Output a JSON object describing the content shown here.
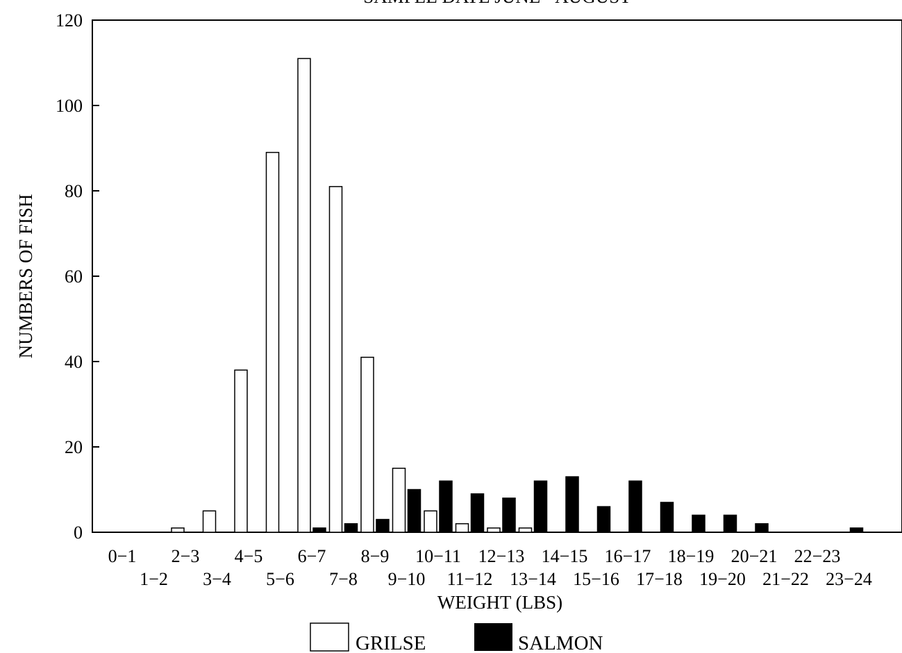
{
  "chart_data": {
    "type": "bar",
    "title": "SAMPLE DATE JUNE - AUGUST",
    "xlabel": "WEIGHT (LBS)",
    "ylabel": "NUMBERS OF FISH",
    "ylim": [
      0,
      120
    ],
    "yticks": [
      0,
      20,
      40,
      60,
      80,
      100,
      120
    ],
    "grid": false,
    "legend_position": "bottom",
    "categories": [
      "0-1",
      "1-2",
      "2-3",
      "3-4",
      "4-5",
      "5-6",
      "6-7",
      "7-8",
      "8-9",
      "9-10",
      "10-11",
      "11-12",
      "12-13",
      "13-14",
      "14-15",
      "15-16",
      "16-17",
      "17-18",
      "18-19",
      "19-20",
      "20-21",
      "21-22",
      "22-23",
      "23-24"
    ],
    "tick_labels_top": [
      "0−1",
      "2−3",
      "4−5",
      "6−7",
      "8−9",
      "10−11",
      "12−13",
      "14−15",
      "16−17",
      "18−19",
      "20−21",
      "22−23"
    ],
    "tick_labels_bottom": [
      "1−2",
      "3−4",
      "5−6",
      "7−8",
      "9−10",
      "11−12",
      "13−14",
      "15−16",
      "17−18",
      "19−20",
      "21−22",
      "23−24"
    ],
    "series": [
      {
        "name": "GRILSE",
        "color": "#ffffff",
        "values": [
          0,
          0,
          1,
          5,
          38,
          89,
          111,
          81,
          41,
          15,
          5,
          2,
          1,
          1,
          0,
          0,
          0,
          0,
          0,
          0,
          0,
          0,
          0,
          0
        ]
      },
      {
        "name": "SALMON",
        "color": "#000000",
        "values": [
          0,
          0,
          0,
          0,
          0,
          0,
          1,
          2,
          3,
          10,
          12,
          9,
          8,
          12,
          13,
          6,
          12,
          7,
          4,
          4,
          2,
          0,
          0,
          1
        ]
      }
    ]
  },
  "legend": {
    "grilse_label": "GRILSE",
    "salmon_label": "SALMON"
  }
}
